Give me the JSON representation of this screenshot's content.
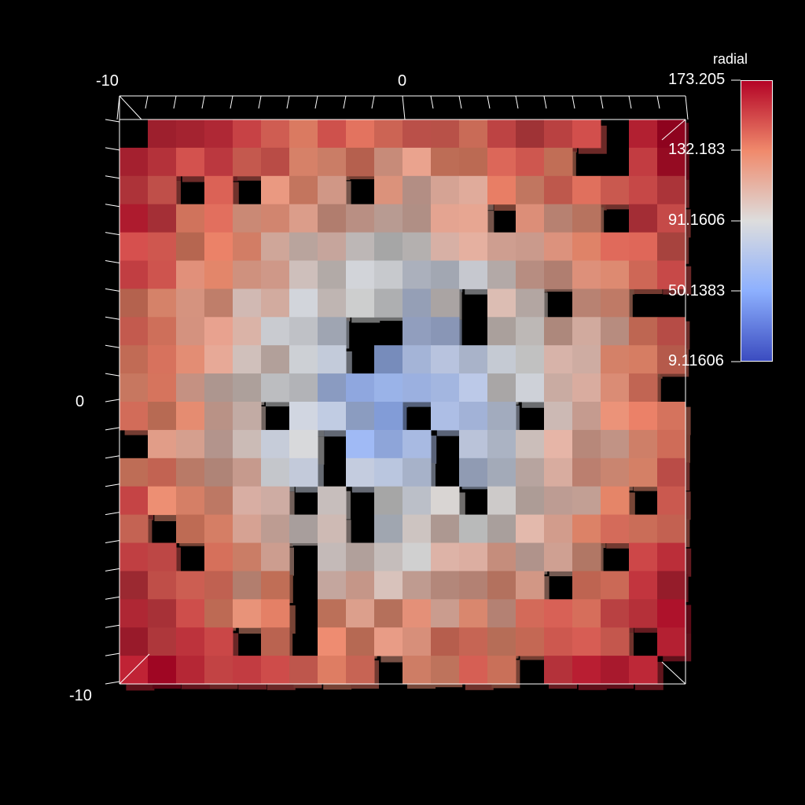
{
  "axes": {
    "x_ticks": [
      "-10",
      "0"
    ],
    "y_ticks": [
      "0",
      "-10"
    ]
  },
  "colorbar": {
    "title": "radial",
    "labels": [
      "173.205",
      "132.183",
      "91.1606",
      "50.1383",
      "9.11606"
    ],
    "min": 9.11606,
    "max": 173.205,
    "low_color": "#3b4cc0",
    "mid_color": "#dddddd",
    "high_color": "#b40426"
  }
}
